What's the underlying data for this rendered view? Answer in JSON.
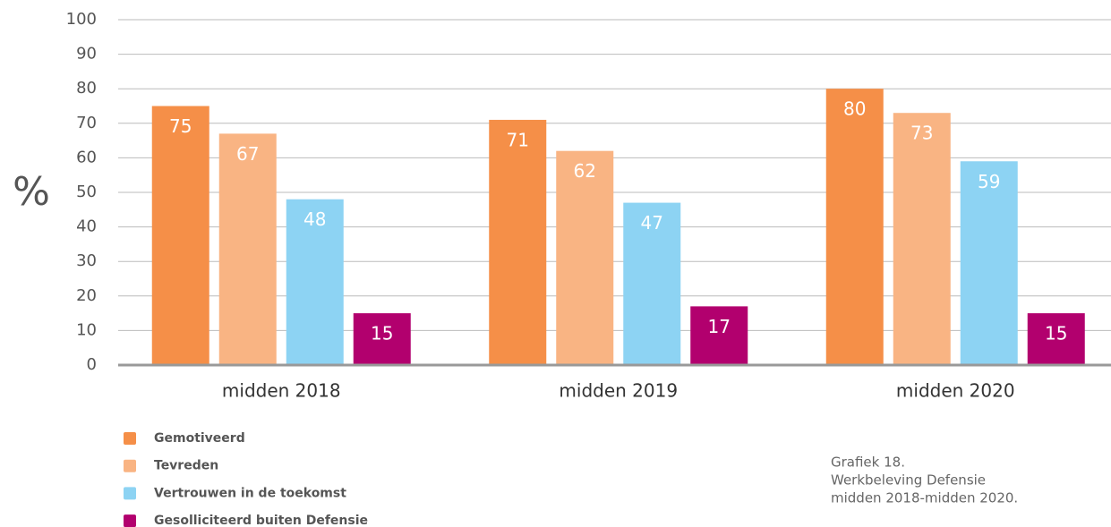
{
  "chart_data": {
    "type": "bar",
    "y_label": "%",
    "categories": [
      "midden 2018",
      "midden 2019",
      "midden 2020"
    ],
    "series": [
      {
        "name": "Gemotiveerd",
        "color": "#f58f48",
        "values": [
          75,
          71,
          80
        ]
      },
      {
        "name": "Tevreden",
        "color": "#f9b483",
        "values": [
          67,
          62,
          73
        ]
      },
      {
        "name": "Vertrouwen in de toekomst",
        "color": "#8dd3f3",
        "values": [
          48,
          47,
          59
        ]
      },
      {
        "name": "Gesolliciteerd buiten Defensie",
        "color": "#b2006e",
        "values": [
          15,
          17,
          15
        ]
      }
    ],
    "ylim": [
      0,
      100
    ],
    "yticks": [
      0,
      10,
      20,
      30,
      40,
      50,
      60,
      70,
      80,
      90,
      100
    ],
    "grid": true,
    "legend": "bottom-left",
    "caption": [
      "Grafiek 18.",
      "Werkbeleving Defensie",
      "midden 2018-midden 2020."
    ]
  }
}
